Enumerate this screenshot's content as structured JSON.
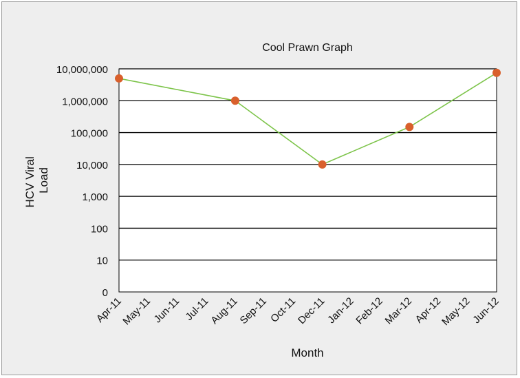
{
  "chart_data": {
    "type": "line",
    "title": "Cool Prawn Graph",
    "xlabel": "Month",
    "ylabel": [
      "HCV Viral",
      "Load"
    ],
    "x_categories": [
      "Apr-11",
      "May-11",
      "Jun-11",
      "Jul-11",
      "Aug-11",
      "Sep-11",
      "Oct-11",
      "Dec-11",
      "Jan-12",
      "Feb-12",
      "Mar-12",
      "Apr-12",
      "May-12",
      "Jun-12"
    ],
    "y_tick_labels": [
      "0",
      "10",
      "100",
      "1,000",
      "10,000",
      "100,000",
      "1,000,000",
      "10,000,000"
    ],
    "y_scale": "log",
    "ylim": [
      0,
      10000000
    ],
    "grid": true,
    "legend": "none",
    "series": [
      {
        "points": [
          {
            "x": "Apr-11",
            "y": 5000000
          },
          {
            "x": "Aug-11",
            "y": 1000000
          },
          {
            "x": "Dec-11",
            "y": 10000
          },
          {
            "x": "Mar-12",
            "y": 150000
          },
          {
            "x": "Jun-12",
            "y": 7500000
          }
        ]
      }
    ],
    "colors": {
      "line": "#7dc44a",
      "marker": "#d9602c",
      "grid": "#000000",
      "plot_background": "#ffffff",
      "frame_background": "#eeeeee"
    }
  }
}
